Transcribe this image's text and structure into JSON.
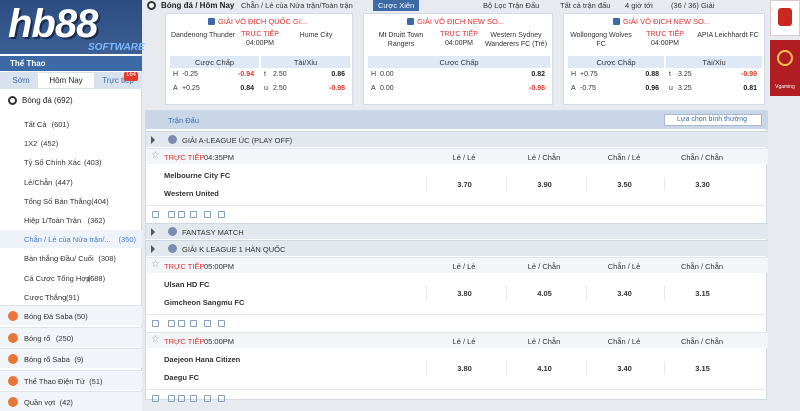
{
  "logo": {
    "brand": "hb88",
    "tagline": "SOFTWARE"
  },
  "sidebar": {
    "title": "Thể Thao",
    "tabs": [
      "Sớm",
      "Hôm Nay",
      "Trực tiếp"
    ],
    "live_count": "164",
    "main_sport": "Bóng đá (692)",
    "markets": [
      {
        "label": "Tất Cả",
        "count": "(601)"
      },
      {
        "label": "1X2",
        "count": "(452)"
      },
      {
        "label": "Tỷ Số Chính Xác",
        "count": "(403)"
      },
      {
        "label": "Lẻ/Chẵn",
        "count": "(447)"
      },
      {
        "label": "Tổng Số Bàn Thắng",
        "count": "(404)"
      },
      {
        "label": "Hiệp 1/Toàn Trận",
        "count": "(362)"
      },
      {
        "label": "Chẵn / Lẻ của Nửa trận/...",
        "count": "(350)"
      },
      {
        "label": "Bàn thắng Đầu/ Cuối",
        "count": "(308)"
      },
      {
        "label": "Cá Cược Tổng Hợp",
        "count": "(688)"
      },
      {
        "label": "Cược Thắng",
        "count": "(91)"
      }
    ],
    "sports": [
      {
        "label": "Bóng Đá Saba",
        "count": "(50)"
      },
      {
        "label": "Bóng rổ",
        "count": "(250)"
      },
      {
        "label": "Bóng rổ Saba",
        "count": "(9)"
      },
      {
        "label": "Thể Thao Điện Tử",
        "count": "(51)"
      },
      {
        "label": "Quần vợt",
        "count": "(42)"
      }
    ]
  },
  "topbar": {
    "breadcrumb": "Bóng đá / Hôm Nay",
    "market": "Chẵn / Lẻ của Nửa trận/Toàn trận",
    "parlay": "Cược Xiên",
    "filter": "Bộ Lọc Trận Đấu",
    "scope": "Tất cả trận đấu",
    "time_window": "4 giờ tới",
    "leagues_count": "(36 / 36) Giải"
  },
  "featured": [
    {
      "league": "GIẢI VÔ ĐỊCH QUỐC GI...",
      "home": "Dandenong Thunder",
      "away": "Hume City",
      "status": "TRỰC TIẾP",
      "time": "04:00PM",
      "handicap": {
        "title": "Cược Chấp",
        "rows": [
          [
            "H",
            "-0.25",
            "-0.94"
          ],
          [
            "A",
            "+0.25",
            "0.84"
          ]
        ]
      },
      "total": {
        "title": "Tài/Xỉu",
        "rows": [
          [
            "t",
            "2.50",
            "0.86"
          ],
          [
            "u",
            "2.50",
            "-0.98"
          ]
        ]
      }
    },
    {
      "league": "GIẢI VÔ ĐỊCH NEW SO...",
      "home": "Mt Druitt Town Rangers",
      "away": "Western Sydney Wanderers FC (Trẻ)",
      "status": "TRỰC TIẾP",
      "time": "04:00PM",
      "handicap": {
        "title": "Cược Chấp",
        "rows": [
          [
            "H",
            "0.00",
            "0.82"
          ],
          [
            "A",
            "0.00",
            "-0.98"
          ]
        ]
      }
    },
    {
      "league": "GIẢI VÔ ĐỊCH NEW SO...",
      "home": "Wollongong Wolves FC",
      "away": "APIA Leichhardt FC",
      "status": "TRỰC TIẾP",
      "time": "04:00PM",
      "handicap": {
        "title": "Cược Chấp",
        "rows": [
          [
            "H",
            "+0.75",
            "0.88"
          ],
          [
            "A",
            "-0.75",
            "0.96"
          ]
        ]
      },
      "total": {
        "title": "Tài/Xỉu",
        "rows": [
          [
            "t",
            "3.25",
            "-0.99"
          ],
          [
            "u",
            "3.25",
            "0.81"
          ]
        ]
      }
    }
  ],
  "promo": {
    "label": "Vgaming"
  },
  "board": {
    "header": "Trận Đấu",
    "view": "Lựa chọn bình thường",
    "columns": [
      "Lẻ / Lẻ",
      "Lẻ / Chẵn",
      "Chẵn / Lẻ",
      "Chẵn / Chẵn"
    ],
    "sections": [
      {
        "league": "GIẢI A-LEAGUE ÚC (PLAY OFF)",
        "matches": [
          {
            "status": "TRỰC TIẾP",
            "time": "04:35PM",
            "home": "Melbourne City FC",
            "away": "Western United",
            "odds": [
              "3.70",
              "3.90",
              "3.50",
              "3.30"
            ]
          }
        ]
      },
      {
        "league": "FANTASY MATCH",
        "matches": []
      },
      {
        "league": "GIẢI K LEAGUE 1 HÀN QUỐC",
        "matches": [
          {
            "status": "TRỰC TIẾP",
            "time": "05:00PM",
            "home": "Ulsan HD FC",
            "away": "Gimcheon Sangmu FC",
            "odds": [
              "3.80",
              "4.05",
              "3.40",
              "3.15"
            ]
          },
          {
            "status": "TRỰC TIẾP",
            "time": "05:00PM",
            "home": "Daejeon Hana Citizen",
            "away": "Daegu FC",
            "odds": [
              "3.80",
              "4.10",
              "3.40",
              "3.15"
            ]
          }
        ]
      }
    ]
  }
}
